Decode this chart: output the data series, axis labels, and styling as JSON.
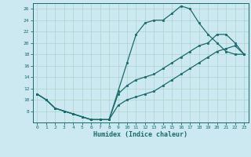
{
  "xlabel": "Humidex (Indice chaleur)",
  "bg_color": "#cce8f0",
  "line_color": "#1a6b6b",
  "grid_color": "#aad4cc",
  "xlim": [
    -0.5,
    23.5
  ],
  "ylim": [
    6,
    27
  ],
  "yticks": [
    8,
    10,
    12,
    14,
    16,
    18,
    20,
    22,
    24,
    26
  ],
  "xticks": [
    0,
    1,
    2,
    3,
    4,
    5,
    6,
    7,
    8,
    9,
    10,
    11,
    12,
    13,
    14,
    15,
    16,
    17,
    18,
    19,
    20,
    21,
    22,
    23
  ],
  "line1_x": [
    0,
    1,
    2,
    3,
    4,
    5,
    6,
    7,
    8,
    9,
    10,
    11,
    12,
    13,
    14,
    15,
    16,
    17,
    18,
    19,
    20,
    21,
    22,
    23
  ],
  "line1_y": [
    11,
    10,
    8.5,
    8,
    7.5,
    7,
    6.5,
    6.5,
    6.5,
    11.5,
    16.5,
    21.5,
    23.5,
    24,
    24,
    25.2,
    26.5,
    26,
    23.5,
    21.5,
    20,
    18.5,
    18,
    18
  ],
  "line2_x": [
    0,
    1,
    2,
    3,
    4,
    5,
    6,
    7,
    8,
    9,
    10,
    11,
    12,
    13,
    14,
    15,
    16,
    17,
    18,
    19,
    20,
    21,
    22,
    23
  ],
  "line2_y": [
    11,
    10,
    8.5,
    8,
    7.5,
    7,
    6.5,
    6.5,
    6.5,
    11,
    12.5,
    13.5,
    14,
    14.5,
    15.5,
    16.5,
    17.5,
    18.5,
    19.5,
    20,
    21.5,
    21.5,
    20,
    18
  ],
  "line3_x": [
    0,
    1,
    2,
    3,
    4,
    5,
    6,
    7,
    8,
    9,
    10,
    11,
    12,
    13,
    14,
    15,
    16,
    17,
    18,
    19,
    20,
    21,
    22,
    23
  ],
  "line3_y": [
    11,
    10,
    8.5,
    8,
    7.5,
    7,
    6.5,
    6.5,
    6.5,
    9,
    10,
    10.5,
    11,
    11.5,
    12.5,
    13.5,
    14.5,
    15.5,
    16.5,
    17.5,
    18.5,
    19,
    19.5,
    18
  ]
}
